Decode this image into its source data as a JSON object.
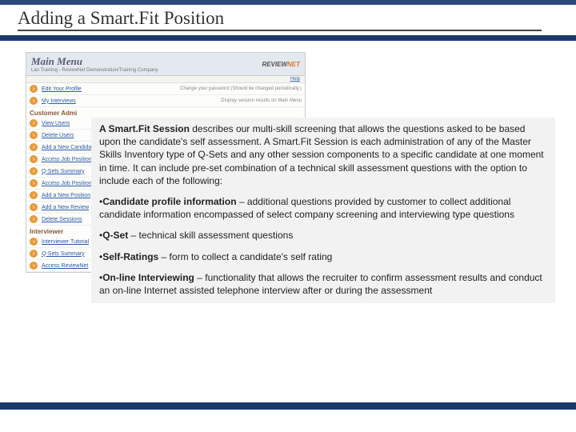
{
  "title": "Adding a Smart.Fit Position",
  "menu": {
    "title": "Main Menu",
    "subtitle": "Lan Training - ReviewNet Demonstration/Training Company",
    "logo_a": "REVIEW",
    "logo_b": "NET",
    "help": "Help",
    "rows": [
      {
        "type": "item",
        "label": "Edit Your Profile",
        "desc": "Change your password (Should be changed periodically.)"
      },
      {
        "type": "item",
        "label": "My Interviews",
        "desc": "Display session results on Main Menu"
      },
      {
        "type": "section",
        "label": "Customer Admi"
      },
      {
        "type": "item",
        "label": "View Users",
        "desc": ""
      },
      {
        "type": "item",
        "label": "Delete Users",
        "desc": ""
      },
      {
        "type": "item",
        "label": "Add a New Candida",
        "desc": ""
      },
      {
        "type": "item",
        "label": "Access Job Position",
        "desc": ""
      },
      {
        "type": "item",
        "label": "Q-Sets Summary",
        "desc": ""
      },
      {
        "type": "item",
        "label": "Access Job Position",
        "desc": ""
      },
      {
        "type": "item",
        "label": "Add a New Position",
        "desc": ""
      },
      {
        "type": "item",
        "label": "Add a New Review",
        "desc": ""
      },
      {
        "type": "item",
        "label": "Delete Sessions",
        "desc": ""
      },
      {
        "type": "section",
        "label": "Interviewer"
      },
      {
        "type": "item",
        "label": "Interviewer Tutorial",
        "desc": ""
      },
      {
        "type": "item",
        "label": "Q-Sets Summary",
        "desc": ""
      },
      {
        "type": "item",
        "label": "Access ReviewNet",
        "desc": ""
      }
    ]
  },
  "body": {
    "p1_b": "A Smart.Fit Session",
    "p1": " describes our multi-skill screening that allows the questions asked to be based upon the candidate's self assessment. A Smart.Fit Session is each administration of any of the Master Skills Inventory type of Q-Sets and any other session components to a specific candidate at one moment in time. It can include pre-set combination of a technical skill assessment questions with the option to include each of the following:",
    "b1_b": "Candidate profile information",
    "b1": " – additional questions provided by customer to collect additional candidate information encompassed of select company screening and interviewing type questions",
    "b2_b": "Q-Set",
    "b2": " – technical skill assessment questions",
    "b3_b": "Self-Ratings",
    "b3": " – form to collect a candidate's self rating",
    "b4_b": "On-line Interviewing",
    "b4": " – functionality that allows the recruiter to confirm assessment results and conduct an on-line Internet assisted telephone interview after or during the assessment"
  },
  "colors": {
    "bar": "#1a3a6a",
    "overlay_bg": "#f2f2f2",
    "icon": "#e89a3a"
  }
}
